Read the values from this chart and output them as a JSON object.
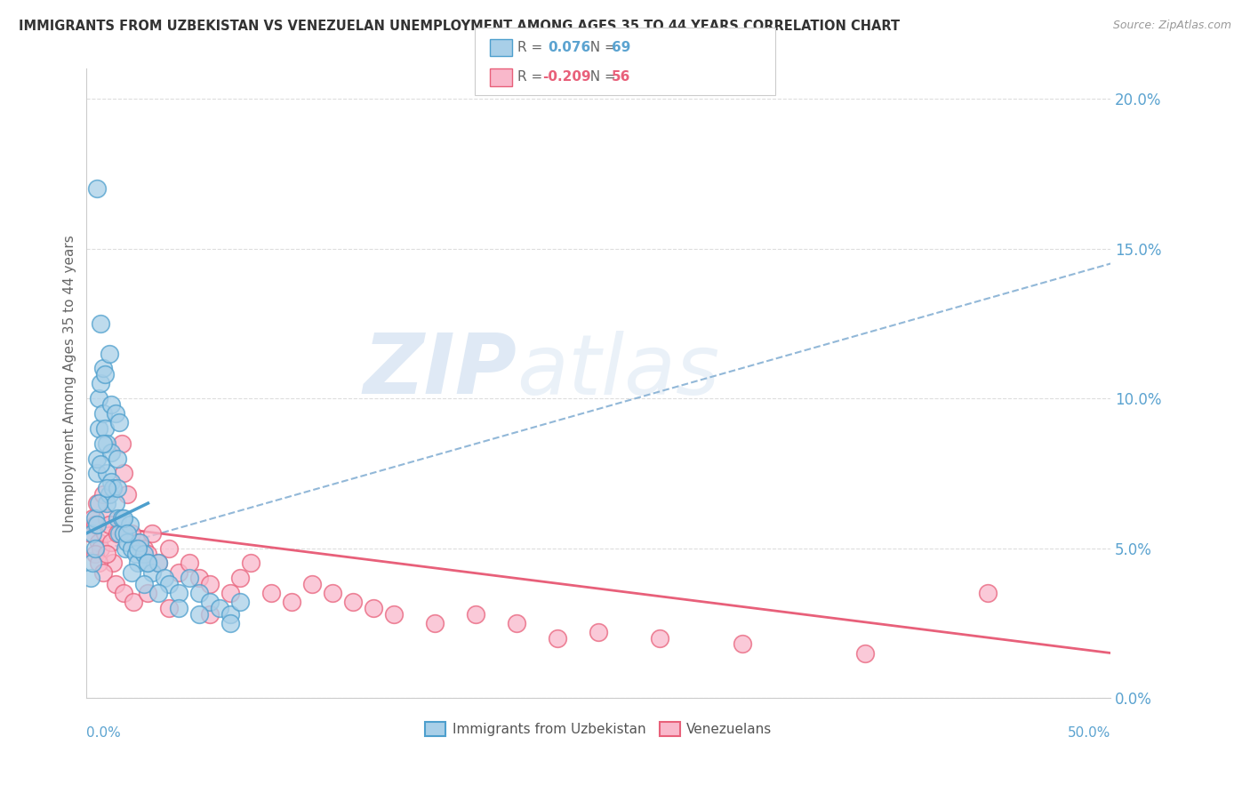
{
  "title": "IMMIGRANTS FROM UZBEKISTAN VS VENEZUELAN UNEMPLOYMENT AMONG AGES 35 TO 44 YEARS CORRELATION CHART",
  "source": "Source: ZipAtlas.com",
  "ylabel": "Unemployment Among Ages 35 to 44 years",
  "yticks": [
    "0.0%",
    "5.0%",
    "10.0%",
    "15.0%",
    "20.0%"
  ],
  "ytick_vals": [
    0.0,
    5.0,
    10.0,
    15.0,
    20.0
  ],
  "xlim": [
    0.0,
    50.0
  ],
  "ylim": [
    0.0,
    21.0
  ],
  "blue_color": "#a8cfe8",
  "pink_color": "#f9b8cb",
  "blue_edge": "#4d9fcd",
  "pink_edge": "#e8607a",
  "trendline_blue_color": "#92b8d8",
  "trendline_pink_color": "#e8607a",
  "watermark_zip": "ZIP",
  "watermark_atlas": "atlas",
  "blue_x": [
    0.3,
    0.4,
    0.5,
    0.5,
    0.6,
    0.6,
    0.7,
    0.8,
    0.8,
    0.9,
    1.0,
    1.0,
    1.0,
    1.1,
    1.2,
    1.2,
    1.3,
    1.4,
    1.5,
    1.5,
    1.6,
    1.7,
    1.8,
    1.9,
    2.0,
    2.1,
    2.2,
    2.4,
    2.5,
    2.6,
    2.8,
    3.0,
    3.2,
    3.5,
    3.8,
    4.0,
    4.5,
    5.0,
    5.5,
    6.0,
    6.5,
    7.0,
    7.5,
    0.2,
    0.3,
    0.4,
    0.5,
    0.6,
    0.7,
    0.8,
    1.0,
    1.2,
    1.5,
    1.8,
    2.0,
    2.5,
    3.0,
    0.5,
    0.7,
    0.9,
    1.1,
    1.4,
    1.6,
    2.2,
    2.8,
    3.5,
    4.5,
    5.5,
    7.0
  ],
  "blue_y": [
    5.5,
    6.0,
    7.5,
    8.0,
    9.0,
    10.0,
    10.5,
    11.0,
    9.5,
    9.0,
    8.5,
    7.5,
    6.5,
    6.8,
    7.2,
    8.2,
    7.0,
    6.5,
    6.0,
    7.0,
    5.5,
    6.0,
    5.5,
    5.0,
    5.2,
    5.8,
    5.0,
    4.8,
    4.5,
    5.2,
    4.8,
    4.5,
    4.2,
    4.5,
    4.0,
    3.8,
    3.5,
    4.0,
    3.5,
    3.2,
    3.0,
    2.8,
    3.2,
    4.0,
    4.5,
    5.0,
    5.8,
    6.5,
    7.8,
    8.5,
    7.0,
    9.8,
    8.0,
    6.0,
    5.5,
    5.0,
    4.5,
    17.0,
    12.5,
    10.8,
    11.5,
    9.5,
    9.2,
    4.2,
    3.8,
    3.5,
    3.0,
    2.8,
    2.5
  ],
  "pink_x": [
    0.2,
    0.3,
    0.4,
    0.5,
    0.6,
    0.7,
    0.8,
    0.9,
    1.0,
    1.1,
    1.2,
    1.3,
    1.5,
    1.7,
    1.8,
    2.0,
    2.2,
    2.5,
    2.8,
    3.0,
    3.2,
    3.5,
    4.0,
    4.5,
    5.0,
    5.5,
    6.0,
    7.0,
    7.5,
    8.0,
    9.0,
    10.0,
    11.0,
    12.0,
    13.0,
    14.0,
    15.0,
    17.0,
    19.0,
    21.0,
    23.0,
    25.0,
    28.0,
    32.0,
    38.0,
    44.0,
    0.4,
    0.6,
    0.8,
    1.0,
    1.4,
    1.8,
    2.3,
    3.0,
    4.0,
    6.0
  ],
  "pink_y": [
    5.5,
    6.0,
    5.8,
    6.5,
    5.2,
    5.0,
    6.8,
    5.5,
    6.0,
    5.8,
    5.2,
    4.5,
    5.5,
    8.5,
    7.5,
    6.8,
    5.5,
    5.2,
    5.0,
    4.8,
    5.5,
    4.5,
    5.0,
    4.2,
    4.5,
    4.0,
    3.8,
    3.5,
    4.0,
    4.5,
    3.5,
    3.2,
    3.8,
    3.5,
    3.2,
    3.0,
    2.8,
    2.5,
    2.8,
    2.5,
    2.0,
    2.2,
    2.0,
    1.8,
    1.5,
    3.5,
    4.8,
    4.5,
    4.2,
    4.8,
    3.8,
    3.5,
    3.2,
    3.5,
    3.0,
    2.8
  ],
  "blue_trend_x0": 0.0,
  "blue_trend_y0": 4.8,
  "blue_trend_x1": 50.0,
  "blue_trend_y1": 14.5,
  "pink_trend_x0": 0.0,
  "pink_trend_y0": 5.8,
  "pink_trend_x1": 50.0,
  "pink_trend_y1": 1.5,
  "blue_seg_x0": 0.0,
  "blue_seg_y0": 5.5,
  "blue_seg_x1": 3.0,
  "blue_seg_y1": 6.5
}
